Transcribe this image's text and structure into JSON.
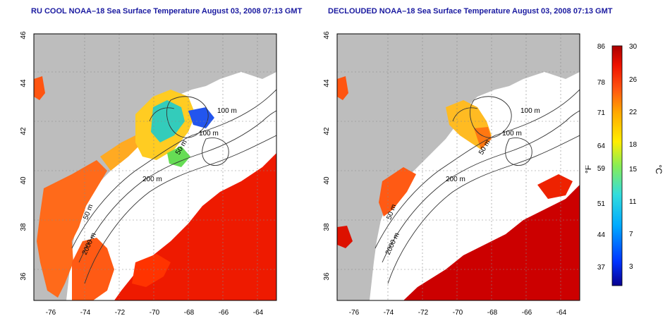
{
  "panels": [
    {
      "title": "RU COOL NOAA–18 Sea Surface Temperature August 03, 2008 07:13 GMT",
      "lon_ticks": [
        "-76",
        "-74",
        "-72",
        "-70",
        "-68",
        "-66",
        "-64"
      ],
      "lat_ticks": [
        "36",
        "38",
        "40",
        "42",
        "44",
        "46"
      ],
      "contour_labels": [
        "100 m",
        "100 m",
        "50 m",
        "200 m",
        "50 m",
        "2000 m"
      ]
    },
    {
      "title": "DECLOUDED NOAA–18 Sea Surface Temperature August 03, 2008 07:13 GMT",
      "lon_ticks": [
        "-76",
        "-74",
        "-72",
        "-70",
        "-68",
        "-66",
        "-64"
      ],
      "lat_ticks": [
        "36",
        "38",
        "40",
        "42",
        "44",
        "46"
      ],
      "contour_labels": [
        "100 m",
        "100 m",
        "50 m",
        "200 m",
        "50 m",
        "2000 m"
      ]
    }
  ],
  "colorbar": {
    "fahrenheit_ticks": [
      "86",
      "78",
      "71",
      "64",
      "59",
      "51",
      "44",
      "37"
    ],
    "celsius_ticks": [
      "30",
      "26",
      "22",
      "18",
      "15",
      "11",
      "7",
      "3"
    ],
    "fahrenheit_unit": "°F",
    "celsius_unit": "°C",
    "colors": [
      "#08008f",
      "#0033ff",
      "#00aaff",
      "#33dddd",
      "#88ee55",
      "#ffee00",
      "#ffaa00",
      "#ff5511",
      "#ee1100",
      "#aa0000"
    ]
  },
  "colors": {
    "land": "#bdbdbd",
    "cloud": "#ffffff",
    "contour": "#333333",
    "title": "#1a1aa0"
  }
}
